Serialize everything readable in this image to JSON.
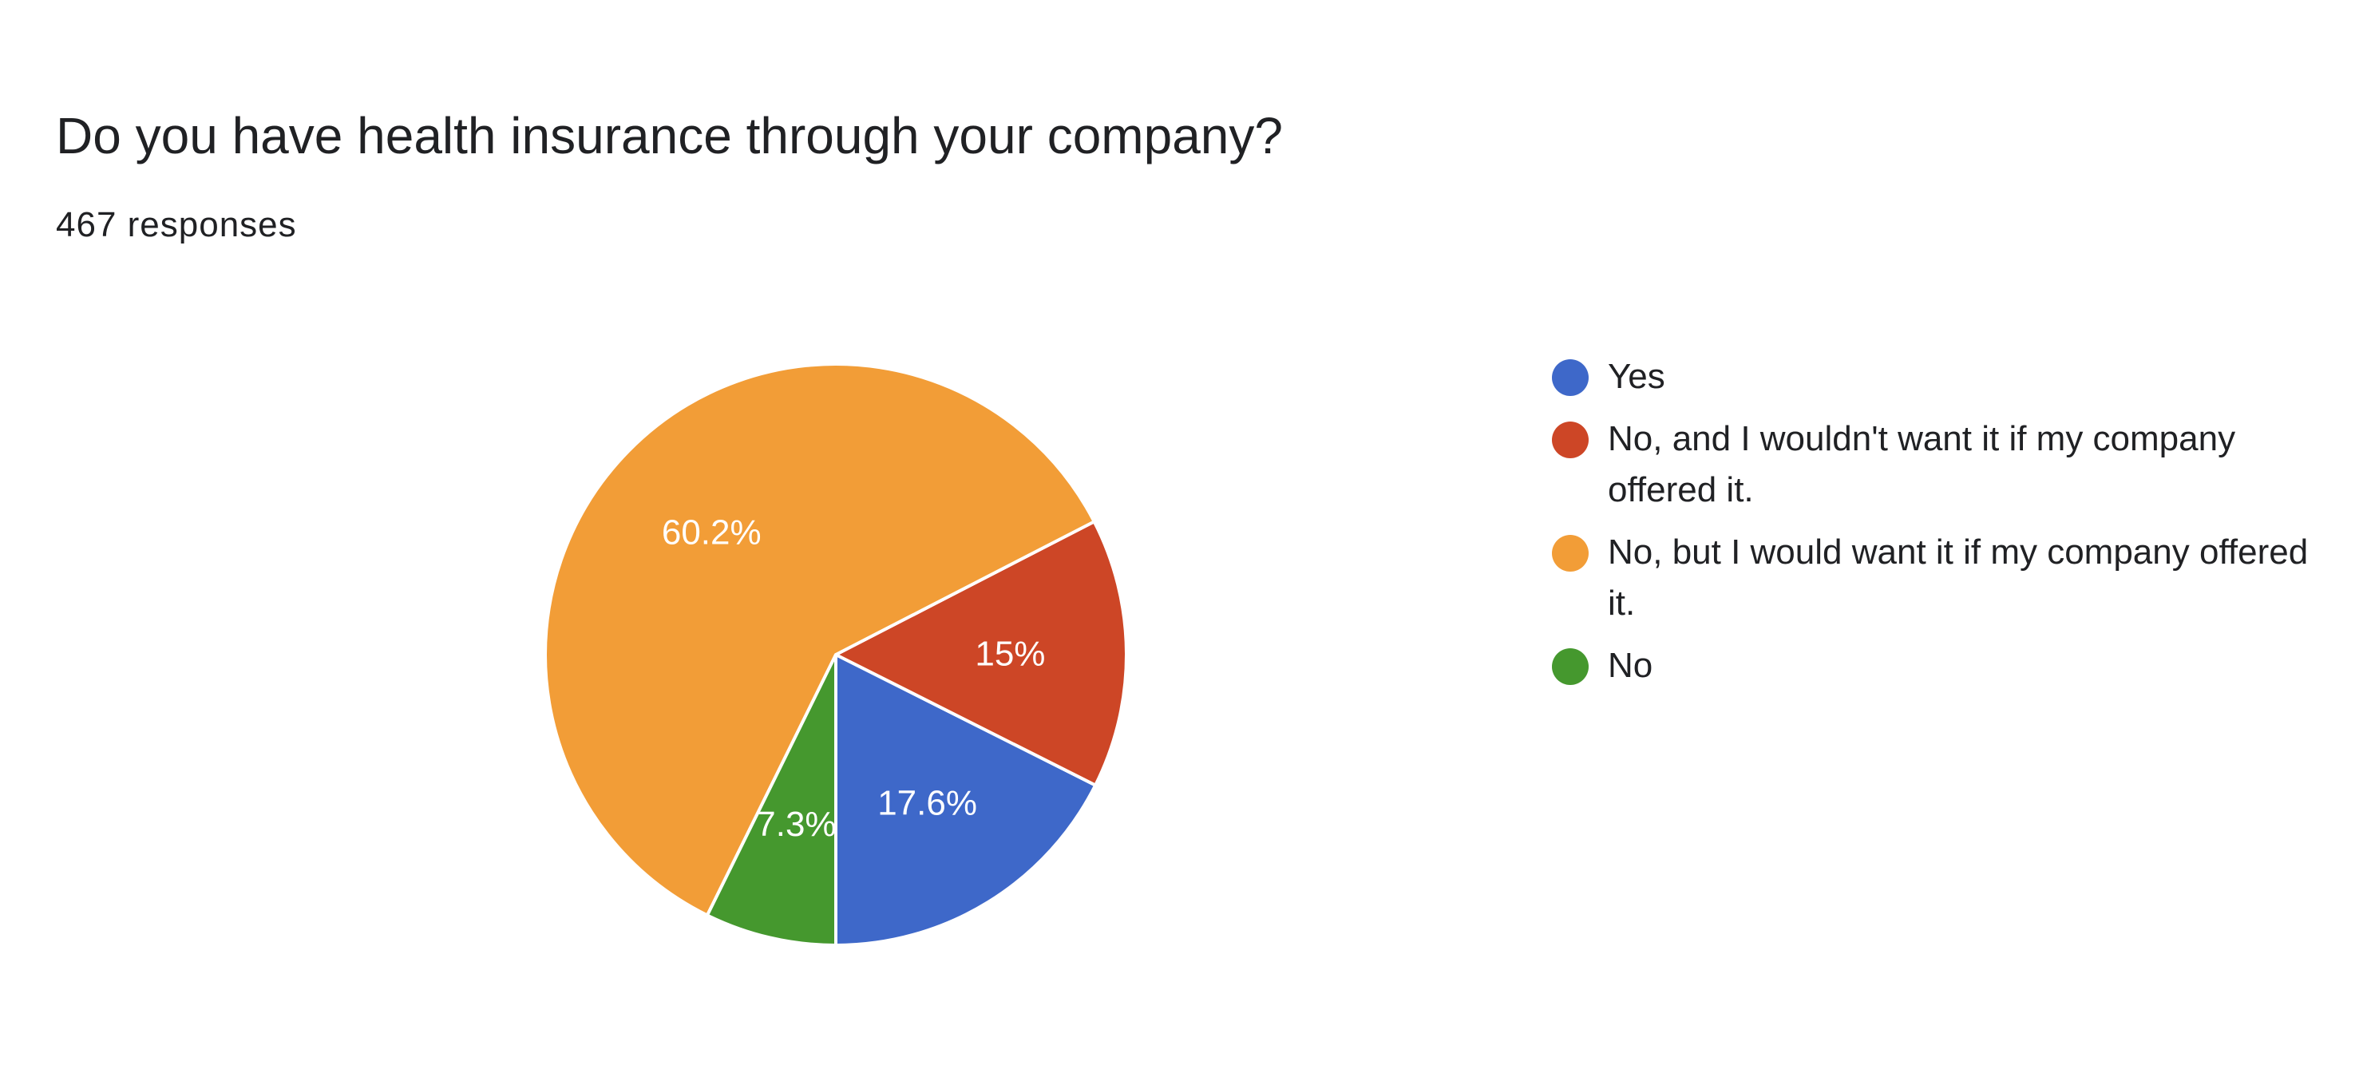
{
  "title": "Do you have health insurance through your company?",
  "subtitle": "467 responses",
  "colors": {
    "text": "#202124",
    "slice_label": "#ffffff",
    "slice_border": "#ffffff"
  },
  "chart_data": {
    "type": "pie",
    "title": "Do you have health insurance through your company?",
    "subtitle": "467 responses",
    "legend_position": "right",
    "start_angle_deg": 90,
    "direction": "clockwise",
    "slices": [
      {
        "label": "Yes",
        "value": 17.6,
        "value_label": "17.6%",
        "color": "#3e68c9"
      },
      {
        "label": "No, and I wouldn't want it if my company offered it.",
        "value": 15.0,
        "value_label": "15%",
        "color": "#cd4626"
      },
      {
        "label": "No, but I would want it if my company offered it.",
        "value": 60.2,
        "value_label": "60.2%",
        "color": "#f29d37"
      },
      {
        "label": "No",
        "value": 7.3,
        "value_label": "7.3%",
        "color": "#45982e"
      }
    ]
  }
}
